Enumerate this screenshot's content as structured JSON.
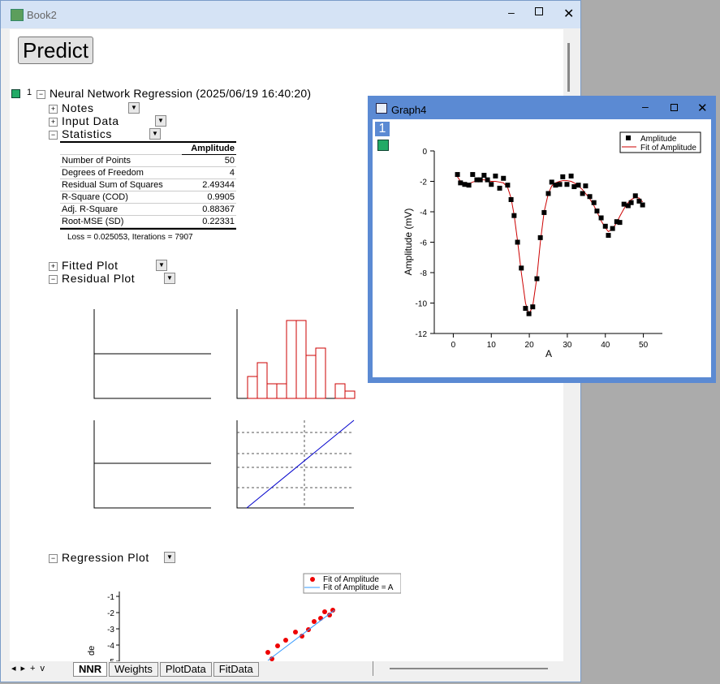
{
  "book": {
    "title": "Book2",
    "button": "Predict",
    "report": {
      "index": "1",
      "title": "Neural Network Regression (2025/06/19 16:40:20)",
      "items": [
        "Notes",
        "Input Data",
        "Statistics"
      ],
      "statistics": {
        "header": "Amplitude",
        "rows": [
          [
            "Number of Points",
            "50"
          ],
          [
            "Degrees of Freedom",
            "4"
          ],
          [
            "Residual Sum of Squares",
            "2.49344"
          ],
          [
            "R-Square (COD)",
            "0.9905"
          ],
          [
            "Adj. R-Square",
            "0.88367"
          ],
          [
            "Root-MSE (SD)",
            "0.22331"
          ]
        ],
        "note": "Loss = 0.025053, Iterations = 7907"
      },
      "items2": [
        "Fitted Plot",
        "Residual Plot"
      ],
      "regression_title": "Regression Plot",
      "regression_legend": [
        "Fit of Amplitude",
        "Fit of Amplitude = A"
      ],
      "regression_yticks": [
        "-1",
        "-2",
        "-3",
        "-4",
        "-5"
      ],
      "regression_ylabel": "de"
    },
    "tabs": [
      "NNR",
      "Weights",
      "PlotData",
      "FitData"
    ]
  },
  "graph": {
    "title": "Graph4",
    "layer": "1"
  },
  "chart_data": {
    "type": "scatter",
    "xlabel": "A",
    "ylabel": "Amplitude (mV)",
    "x": [
      1.1,
      1.9,
      3.0,
      4.1,
      5.1,
      6.2,
      7.1,
      8.1,
      9.0,
      10.0,
      11.1,
      12.2,
      13.2,
      14.3,
      15.2,
      16.0,
      16.9,
      17.9,
      19.0,
      19.9,
      20.9,
      22.0,
      22.9,
      23.9,
      25.0,
      25.9,
      26.9,
      28.0,
      28.8,
      29.9,
      31.0,
      31.8,
      32.9,
      34.0,
      34.8,
      35.9,
      37.0,
      37.8,
      38.9,
      40.0,
      40.8,
      41.9,
      43.0,
      43.8,
      44.9,
      46.0,
      46.8,
      47.9,
      48.9,
      49.8
    ],
    "series": [
      {
        "name": "Amplitude",
        "color": "#000000",
        "values": [
          -1.55,
          -2.1,
          -2.2,
          -2.25,
          -1.55,
          -1.9,
          -1.9,
          -1.6,
          -1.9,
          -2.2,
          -1.65,
          -2.45,
          -1.8,
          -2.25,
          -3.2,
          -4.25,
          -6.0,
          -7.7,
          -10.35,
          -10.7,
          -10.25,
          -8.4,
          -5.7,
          -4.05,
          -2.8,
          -2.05,
          -2.25,
          -2.2,
          -1.7,
          -2.2,
          -1.65,
          -2.35,
          -2.25,
          -2.8,
          -2.3,
          -3.0,
          -3.4,
          -3.95,
          -4.4,
          -4.95,
          -5.55,
          -5.1,
          -4.65,
          -4.7,
          -3.5,
          -3.6,
          -3.4,
          -2.95,
          -3.3,
          -3.55
        ]
      },
      {
        "name": "Fit of Amplitude",
        "color": "#cc0000",
        "values": [
          -1.7,
          -2.0,
          -2.15,
          -2.15,
          -2.05,
          -1.95,
          -1.9,
          -1.9,
          -1.95,
          -2.0,
          -2.0,
          -2.05,
          -2.1,
          -2.4,
          -3.1,
          -4.2,
          -5.9,
          -8.0,
          -10.0,
          -10.75,
          -10.2,
          -8.3,
          -6.0,
          -4.0,
          -2.8,
          -2.3,
          -2.1,
          -2.0,
          -1.95,
          -1.95,
          -2.0,
          -2.1,
          -2.3,
          -2.55,
          -2.8,
          -3.15,
          -3.6,
          -4.0,
          -4.6,
          -5.05,
          -5.3,
          -5.15,
          -4.7,
          -4.3,
          -3.8,
          -3.4,
          -3.2,
          -3.05,
          -3.1,
          -3.35
        ]
      }
    ],
    "xlim": [
      -5,
      55
    ],
    "ylim": [
      -12,
      0
    ],
    "xticks": [
      0,
      10,
      20,
      30,
      40,
      50
    ],
    "yticks": [
      0,
      -2,
      -4,
      -6,
      -8,
      -10,
      -12
    ],
    "legend": "upper right"
  }
}
